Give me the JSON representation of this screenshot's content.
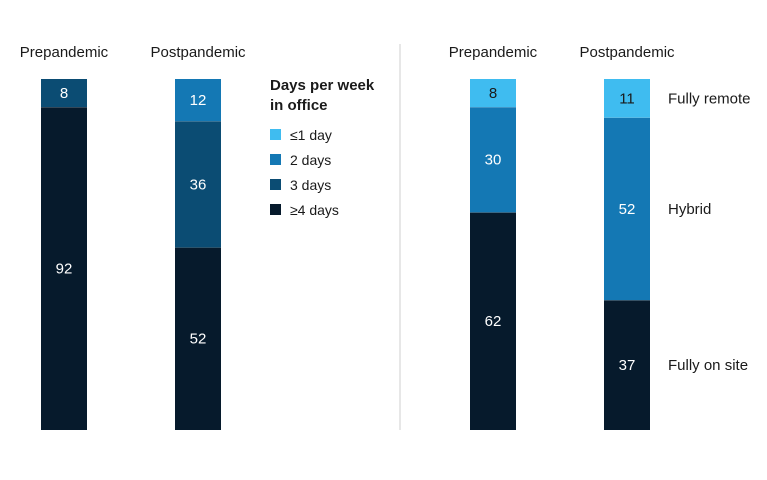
{
  "colors": {
    "le1": "#3fbcf0",
    "d2": "#1478b4",
    "d3": "#0b4c73",
    "ge4": "#061a2c",
    "divider": "#cfcfcf"
  },
  "legend": {
    "title": "Days per week in office",
    "items": [
      {
        "label": "≤1 day",
        "color_key": "le1"
      },
      {
        "label": "2 days",
        "color_key": "d2"
      },
      {
        "label": "3 days",
        "color_key": "d3"
      },
      {
        "label": "≥4 days",
        "color_key": "ge4"
      }
    ]
  },
  "chart_data": [
    {
      "type": "bar",
      "stacked": true,
      "orientation": "vertical",
      "categories": [
        "Prepandemic",
        "Postpandemic"
      ],
      "series": [
        {
          "name": "≤1 day",
          "color_key": "le1",
          "values": [
            0,
            0
          ]
        },
        {
          "name": "2 days",
          "color_key": "d2",
          "values": [
            0,
            12
          ]
        },
        {
          "name": "3 days",
          "color_key": "d3",
          "values": [
            8,
            36
          ]
        },
        {
          "name": "≥4 days",
          "color_key": "ge4",
          "values": [
            92,
            52
          ]
        }
      ],
      "ylim": [
        0,
        100
      ],
      "legend_position": "right",
      "grid": false
    },
    {
      "type": "bar",
      "stacked": true,
      "orientation": "vertical",
      "categories": [
        "Prepandemic",
        "Postpandemic"
      ],
      "series": [
        {
          "name": "Fully remote",
          "color_key": "le1",
          "values": [
            8,
            11
          ]
        },
        {
          "name": "Hybrid",
          "color_key": "d2",
          "values": [
            30,
            52
          ]
        },
        {
          "name": "Fully on site",
          "color_key": "ge4",
          "values": [
            62,
            37
          ]
        }
      ],
      "ylim": [
        0,
        100
      ],
      "series_labels_position": "right",
      "grid": false
    }
  ]
}
